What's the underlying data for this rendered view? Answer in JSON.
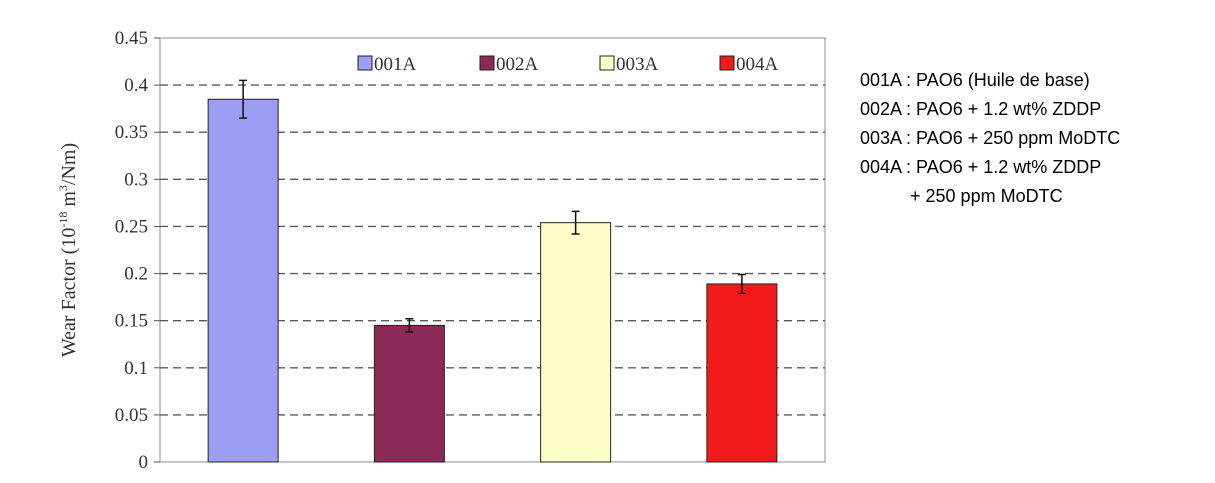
{
  "chart_data": {
    "type": "bar",
    "categories": [
      "001A",
      "002A",
      "003A",
      "004A"
    ],
    "values": [
      0.385,
      0.145,
      0.254,
      0.189
    ],
    "errors": [
      0.02,
      0.007,
      0.012,
      0.01
    ],
    "colors": [
      "#9b9ef3",
      "#8c2a55",
      "#fefec9",
      "#f21a1a"
    ],
    "ylim": [
      0,
      0.45
    ],
    "yticks": [
      "0",
      "0.05",
      "0.1",
      "0.15",
      "0.2",
      "0.25",
      "0.3",
      "0.35",
      "0.4",
      "0.45"
    ],
    "ylabel": {
      "main": "Wear Factor (10",
      "exp1": "-18",
      "mid": " m",
      "exp2": "3",
      "end": "/Nm)"
    },
    "grid": "horizontal-dashed",
    "legend": {
      "placement": "top",
      "entries": [
        "001A",
        "002A",
        "003A",
        "004A"
      ]
    }
  },
  "notes": [
    "001A : PAO6 (Huile de base)",
    "002A : PAO6 + 1.2 wt% ZDDP",
    "003A : PAO6 + 250 ppm MoDTC",
    "004A : PAO6 + 1.2 wt% ZDDP",
    "          + 250 ppm MoDTC"
  ]
}
